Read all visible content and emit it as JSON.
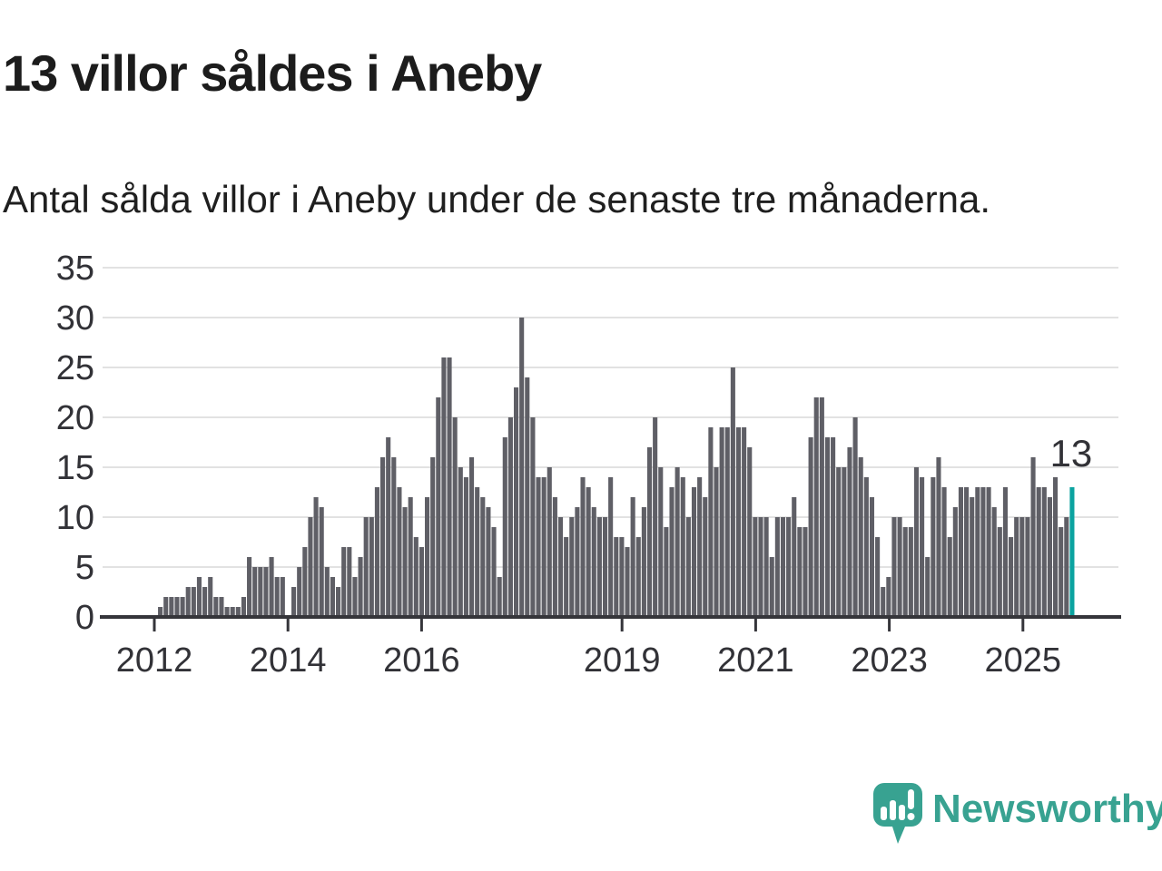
{
  "title": "13 villor såldes i Aneby",
  "subtitle": "Antal sålda villor i Aneby under de senaste tre månaderna.",
  "annotation": {
    "last_value_label": "13"
  },
  "logo": {
    "text": "Newsworthy"
  },
  "colors": {
    "bar": "#5f5f66",
    "highlight": "#0ba3a0",
    "axis": "#35353a",
    "grid": "#e2e2e2",
    "tick_text": "#323237",
    "title_text": "#1c1c1c",
    "logo_teal": "#38a291"
  },
  "chart_data": {
    "type": "bar",
    "title": "13 villor såldes i Aneby",
    "subtitle": "Antal sålda villor i Aneby under de senaste tre månaderna.",
    "unit": "sålda villor (rullande 3 månader)",
    "frequency": "monthly",
    "start": "2012-01",
    "end": "2025-09",
    "xlabel": "",
    "ylabel": "",
    "ylim": [
      0,
      35
    ],
    "y_ticks": [
      0,
      5,
      10,
      15,
      20,
      25,
      30,
      35
    ],
    "x_tick_labels": [
      "2012",
      "2014",
      "2016",
      "2019",
      "2021",
      "2023",
      "2025"
    ],
    "grid": true,
    "legend": false,
    "highlight_last": true,
    "last_value": 13,
    "values": [
      1,
      2,
      2,
      2,
      2,
      3,
      3,
      4,
      3,
      4,
      2,
      2,
      1,
      1,
      1,
      2,
      6,
      5,
      5,
      5,
      6,
      4,
      4,
      0,
      3,
      5,
      7,
      10,
      12,
      11,
      5,
      4,
      3,
      7,
      7,
      4,
      6,
      10,
      10,
      13,
      16,
      18,
      16,
      13,
      11,
      12,
      8,
      7,
      12,
      16,
      22,
      26,
      26,
      20,
      15,
      14,
      16,
      13,
      12,
      11,
      9,
      4,
      18,
      20,
      23,
      30,
      24,
      20,
      14,
      14,
      15,
      12,
      10,
      8,
      10,
      11,
      14,
      13,
      11,
      10,
      10,
      14,
      8,
      8,
      7,
      12,
      8,
      11,
      17,
      20,
      15,
      9,
      13,
      15,
      14,
      10,
      13,
      14,
      12,
      19,
      15,
      19,
      19,
      25,
      19,
      19,
      17,
      10,
      10,
      10,
      6,
      10,
      10,
      10,
      12,
      9,
      9,
      18,
      22,
      22,
      18,
      18,
      15,
      15,
      17,
      20,
      16,
      14,
      12,
      8,
      3,
      4,
      10,
      10,
      9,
      9,
      15,
      14,
      6,
      14,
      16,
      13,
      8,
      11,
      13,
      13,
      12,
      13,
      13,
      13,
      11,
      9,
      13,
      8,
      10,
      10,
      10,
      16,
      13,
      13,
      12,
      14,
      9,
      10,
      13
    ]
  }
}
